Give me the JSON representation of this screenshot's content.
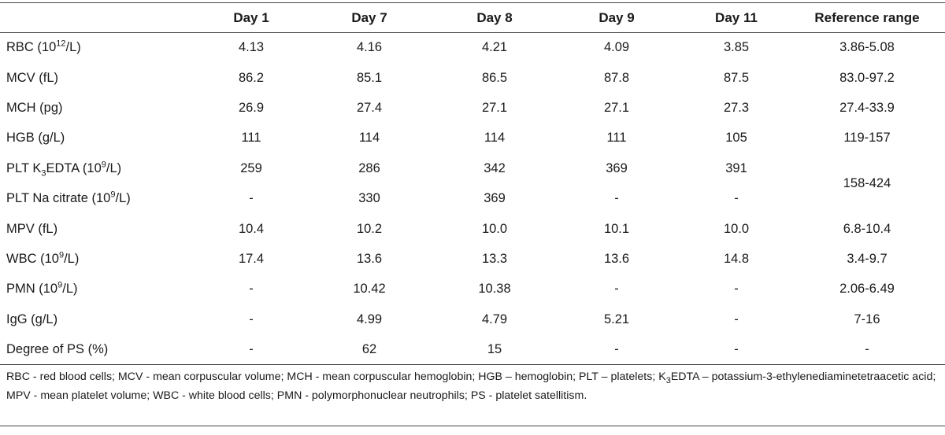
{
  "table": {
    "headers": [
      "",
      "Day 1",
      "Day 7",
      "Day 8",
      "Day 9",
      "Day 11",
      "Reference range"
    ],
    "rows": [
      {
        "label": "RBC (10",
        "sup": "12",
        "label_end": "/L)",
        "values": [
          "4.13",
          "4.16",
          "4.21",
          "4.09",
          "3.85"
        ],
        "ref": "3.86-5.08"
      },
      {
        "label": "MCV (fL)",
        "values": [
          "86.2",
          "85.1",
          "86.5",
          "87.8",
          "87.5"
        ],
        "ref": "83.0-97.2"
      },
      {
        "label": "MCH (pg)",
        "values": [
          "26.9",
          "27.4",
          "27.1",
          "27.1",
          "27.3"
        ],
        "ref": "27.4-33.9"
      },
      {
        "label": "HGB (g/L)",
        "values": [
          "111",
          "114",
          "114",
          "111",
          "105"
        ],
        "ref": "119-157"
      },
      {
        "label": "PLT K",
        "sub": "3",
        "label_mid": "EDTA (10",
        "sup": "9",
        "label_end": "/L)",
        "values": [
          "259",
          "286",
          "342",
          "369",
          "391"
        ]
      },
      {
        "label": "PLT Na citrate (10",
        "sup": "9",
        "label_end": "/L)",
        "values": [
          "-",
          "330",
          "369",
          "-",
          "-"
        ]
      },
      {
        "label": "MPV (fL)",
        "values": [
          "10.4",
          "10.2",
          "10.0",
          "10.1",
          "10.0"
        ],
        "ref": "6.8-10.4"
      },
      {
        "label": "WBC (10",
        "sup": "9",
        "label_end": "/L)",
        "values": [
          "17.4",
          "13.6",
          "13.3",
          "13.6",
          "14.8"
        ],
        "ref": "3.4-9.7"
      },
      {
        "label": "PMN (10",
        "sup": "9",
        "label_end": "/L)",
        "values": [
          "-",
          "10.42",
          "10.38",
          "-",
          "-"
        ],
        "ref": "2.06-6.49"
      },
      {
        "label": "IgG (g/L)",
        "values": [
          "-",
          "4.99",
          "4.79",
          "5.21",
          "-"
        ],
        "ref": "7-16"
      },
      {
        "label": "Degree of PS (%)",
        "values": [
          "-",
          "62",
          "15",
          "-",
          "-"
        ],
        "ref": "-"
      }
    ],
    "plt_ref": "158-424"
  },
  "footnote": {
    "part1": "RBC - red blood cells; MCV - mean corpuscular volume; MCH - mean corpuscular hemoglobin; HGB – hemoglobin; PLT – platelets; K",
    "sub": "3",
    "part2": "EDTA – potassium-3-ethylenediaminetetraacetic acid; MPV - mean platelet volume; WBC - white blood cells; PMN - polymorphonuclear neutrophils; PS - platelet satellitism."
  }
}
